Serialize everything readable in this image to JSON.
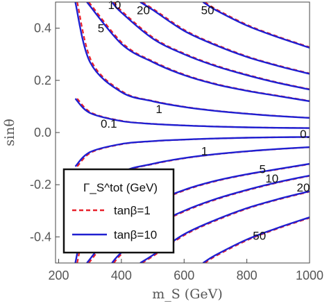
{
  "chart_data": {
    "type": "line",
    "xlabel": "m_S (GeV)",
    "ylabel": "sinθ",
    "xlim": [
      190,
      1000
    ],
    "ylim": [
      -0.5,
      0.5
    ],
    "x_ticks": [
      200,
      400,
      600,
      800,
      1000
    ],
    "y_ticks": [
      0.4,
      0.2,
      0.0,
      -0.2,
      -0.4
    ],
    "grid": false,
    "legend": {
      "placement": "bottom-left",
      "title": "Γ_S^tot (GeV)",
      "entries": [
        {
          "label": "tanβ=1",
          "style": "dashed",
          "color": "#e8202a"
        },
        {
          "label": "tanβ=10",
          "style": "solid",
          "color": "#1f1fd1"
        }
      ]
    },
    "contour_levels": [
      "0.1",
      "1",
      "5",
      "10",
      "20",
      "50"
    ],
    "series": [
      {
        "level": "0.1",
        "branch": "upper",
        "x": [
          253,
          300,
          400,
          500,
          600,
          700,
          800,
          900,
          1000
        ],
        "y": [
          0.13,
          0.075,
          0.044,
          0.033,
          0.027,
          0.023,
          0.02,
          0.018,
          0.017
        ]
      },
      {
        "level": "0.1",
        "branch": "lower",
        "x": [
          253,
          300,
          400,
          500,
          600,
          700,
          800,
          900,
          1000
        ],
        "y": [
          -0.13,
          -0.075,
          -0.044,
          -0.033,
          -0.027,
          -0.023,
          -0.02,
          -0.018,
          -0.017
        ]
      },
      {
        "level": "1",
        "branch": "upper",
        "x": [
          253,
          300,
          400,
          500,
          600,
          700,
          800,
          900,
          1000
        ],
        "y": [
          0.5,
          0.27,
          0.155,
          0.12,
          0.098,
          0.083,
          0.072,
          0.063,
          0.056
        ]
      },
      {
        "level": "1",
        "branch": "lower",
        "x": [
          253,
          300,
          400,
          500,
          600,
          700,
          800,
          900,
          1000
        ],
        "y": [
          -0.5,
          -0.27,
          -0.155,
          -0.12,
          -0.098,
          -0.083,
          -0.072,
          -0.063,
          -0.056
        ]
      },
      {
        "level": "5",
        "branch": "upper",
        "x": [
          290,
          400,
          500,
          600,
          700,
          800,
          900,
          1000
        ],
        "y": [
          0.5,
          0.34,
          0.27,
          0.22,
          0.185,
          0.16,
          0.14,
          0.12
        ]
      },
      {
        "level": "5",
        "branch": "lower",
        "x": [
          290,
          400,
          500,
          600,
          700,
          800,
          900,
          1000
        ],
        "y": [
          -0.5,
          -0.34,
          -0.27,
          -0.22,
          -0.185,
          -0.16,
          -0.14,
          -0.12
        ]
      },
      {
        "level": "10",
        "branch": "upper",
        "x": [
          370,
          400,
          500,
          600,
          700,
          800,
          900,
          1000
        ],
        "y": [
          0.5,
          0.46,
          0.36,
          0.3,
          0.255,
          0.22,
          0.19,
          0.165
        ]
      },
      {
        "level": "10",
        "branch": "lower",
        "x": [
          370,
          400,
          500,
          600,
          700,
          800,
          900,
          1000
        ],
        "y": [
          -0.5,
          -0.46,
          -0.36,
          -0.3,
          -0.255,
          -0.22,
          -0.19,
          -0.165
        ]
      },
      {
        "level": "20",
        "branch": "upper",
        "x": [
          460,
          500,
          600,
          700,
          800,
          900,
          1000
        ],
        "y": [
          0.5,
          0.47,
          0.39,
          0.335,
          0.29,
          0.255,
          0.225
        ]
      },
      {
        "level": "20",
        "branch": "lower",
        "x": [
          460,
          500,
          600,
          700,
          800,
          900,
          1000
        ],
        "y": [
          -0.5,
          -0.47,
          -0.39,
          -0.335,
          -0.29,
          -0.255,
          -0.225
        ]
      },
      {
        "level": "50",
        "branch": "upper",
        "x": [
          660,
          700,
          800,
          900,
          1000
        ],
        "y": [
          0.5,
          0.47,
          0.41,
          0.365,
          0.325
        ]
      },
      {
        "level": "50",
        "branch": "lower",
        "x": [
          660,
          700,
          800,
          900,
          1000
        ],
        "y": [
          -0.5,
          -0.47,
          -0.41,
          -0.365,
          -0.325
        ]
      }
    ],
    "annotations": [
      {
        "text": "10",
        "x": 378,
        "y": 0.49
      },
      {
        "text": "20",
        "x": 470,
        "y": 0.47
      },
      {
        "text": "50",
        "x": 675,
        "y": 0.47
      },
      {
        "text": "5",
        "x": 335,
        "y": 0.4
      },
      {
        "text": "1",
        "x": 520,
        "y": 0.09
      },
      {
        "text": "0.1",
        "x": 360,
        "y": 0.035
      },
      {
        "text": "0.",
        "x": 985,
        "y": -0.005
      },
      {
        "text": "1",
        "x": 665,
        "y": -0.07
      },
      {
        "text": "5",
        "x": 850,
        "y": -0.14
      },
      {
        "text": "10",
        "x": 880,
        "y": -0.175
      },
      {
        "text": "20",
        "x": 980,
        "y": -0.21
      },
      {
        "text": "50",
        "x": 840,
        "y": -0.395
      }
    ]
  }
}
